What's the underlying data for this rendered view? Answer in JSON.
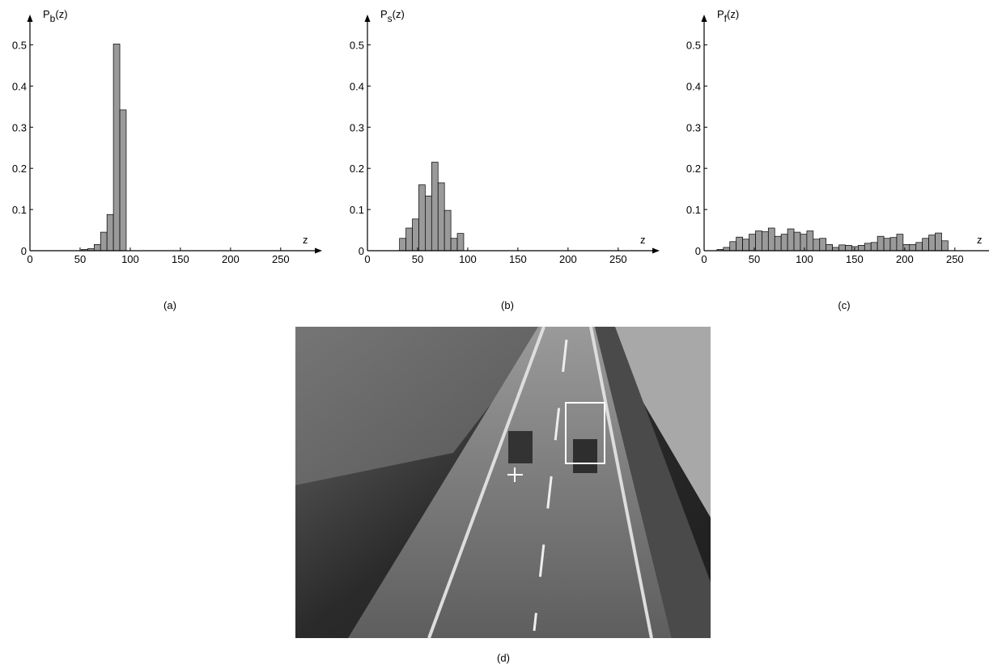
{
  "chart_data": [
    {
      "type": "histogram",
      "ylabel": [
        "P",
        "b",
        "(z)"
      ],
      "xlabel": "z",
      "caption": "(a)",
      "bins": [
        0,
        6.4,
        12.8,
        19.2,
        25.6,
        32,
        38.4,
        44.8,
        51.2,
        57.6,
        64,
        70.4,
        76.8,
        83.2,
        89.6,
        96,
        102.4,
        108.8,
        115.2,
        121.6,
        128,
        134.4,
        140.8,
        147.2,
        153.6,
        160,
        166.4,
        172.8,
        179.2,
        185.6,
        192,
        198.4,
        204.8,
        211.2,
        217.6,
        224,
        230.4,
        236.8,
        243.2,
        249.6,
        256
      ],
      "values": [
        0,
        0,
        0,
        0,
        0,
        0,
        0,
        0,
        0.003,
        0.005,
        0.015,
        0.045,
        0.088,
        0.502,
        0.342,
        0,
        0,
        0,
        0,
        0,
        0,
        0,
        0,
        0,
        0,
        0,
        0,
        0,
        0,
        0,
        0,
        0,
        0,
        0,
        0,
        0,
        0,
        0,
        0,
        0
      ],
      "color": "#9a9a9a",
      "xlim": [
        0,
        280
      ],
      "ylim": [
        0,
        0.55
      ],
      "xticks": [
        0,
        50,
        100,
        150,
        200,
        250
      ],
      "yticks": [
        0,
        0.1,
        0.2,
        0.3,
        0.4,
        0.5
      ]
    },
    {
      "type": "histogram",
      "ylabel": [
        "P",
        "s",
        "(z)"
      ],
      "xlabel": "z",
      "caption": "(b)",
      "bins": [
        0,
        6.4,
        12.8,
        19.2,
        25.6,
        32,
        38.4,
        44.8,
        51.2,
        57.6,
        64,
        70.4,
        76.8,
        83.2,
        89.6,
        96,
        102.4,
        108.8,
        115.2,
        121.6,
        128,
        134.4,
        140.8,
        147.2,
        153.6,
        160,
        166.4,
        172.8,
        179.2,
        185.6,
        192,
        198.4,
        204.8,
        211.2,
        217.6,
        224,
        230.4,
        236.8,
        243.2,
        249.6,
        256
      ],
      "values": [
        0,
        0,
        0,
        0,
        0,
        0.03,
        0.055,
        0.077,
        0.16,
        0.133,
        0.215,
        0.165,
        0.098,
        0.03,
        0.042,
        0,
        0,
        0,
        0,
        0,
        0,
        0,
        0,
        0,
        0,
        0,
        0,
        0,
        0,
        0,
        0,
        0,
        0,
        0,
        0,
        0,
        0,
        0,
        0,
        0
      ],
      "color": "#9a9a9a",
      "xlim": [
        0,
        280
      ],
      "ylim": [
        0,
        0.55
      ],
      "xticks": [
        0,
        50,
        100,
        150,
        200,
        250
      ],
      "yticks": [
        0,
        0.1,
        0.2,
        0.3,
        0.4,
        0.5
      ]
    },
    {
      "type": "histogram",
      "ylabel": [
        "P",
        "f",
        "(z)"
      ],
      "xlabel": "z",
      "caption": "(c)",
      "bins": [
        0,
        6.4,
        12.8,
        19.2,
        25.6,
        32,
        38.4,
        44.8,
        51.2,
        57.6,
        64,
        70.4,
        76.8,
        83.2,
        89.6,
        96,
        102.4,
        108.8,
        115.2,
        121.6,
        128,
        134.4,
        140.8,
        147.2,
        153.6,
        160,
        166.4,
        172.8,
        179.2,
        185.6,
        192,
        198.4,
        204.8,
        211.2,
        217.6,
        224,
        230.4,
        236.8,
        243.2,
        249.6,
        256
      ],
      "values": [
        0,
        0,
        0.003,
        0.008,
        0.022,
        0.033,
        0.028,
        0.04,
        0.048,
        0.046,
        0.055,
        0.035,
        0.04,
        0.053,
        0.045,
        0.04,
        0.048,
        0.028,
        0.03,
        0.015,
        0.008,
        0.014,
        0.013,
        0.01,
        0.013,
        0.018,
        0.02,
        0.035,
        0.03,
        0.032,
        0.04,
        0.015,
        0.015,
        0.02,
        0.03,
        0.038,
        0.043,
        0.024,
        0,
        0
      ],
      "color": "#9a9a9a",
      "xlim": [
        0,
        280
      ],
      "ylim": [
        0,
        0.55
      ],
      "xticks": [
        0,
        50,
        100,
        150,
        200,
        250
      ],
      "yticks": [
        0,
        0.1,
        0.2,
        0.3,
        0.4,
        0.5
      ]
    }
  ],
  "image": {
    "caption": "(d)"
  }
}
